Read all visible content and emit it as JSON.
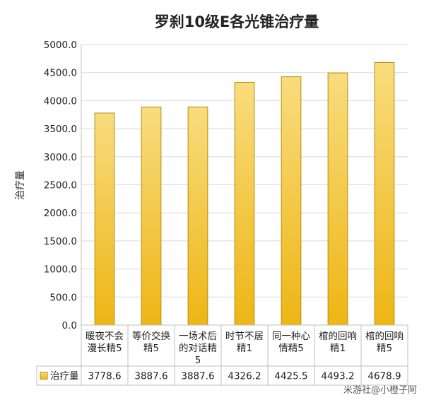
{
  "chart_data": {
    "type": "bar",
    "title": "罗刹10级E各光锥治疗量",
    "xlabel": "",
    "ylabel": "治疗量",
    "ylim": [
      0,
      5000
    ],
    "yticks": [
      "0.0",
      "500.0",
      "1000.0",
      "1500.0",
      "2000.0",
      "2500.0",
      "3000.0",
      "3500.0",
      "4000.0",
      "4500.0",
      "5000.0"
    ],
    "grid": true,
    "categories": [
      [
        "暖夜不会",
        "漫长精5"
      ],
      [
        "等价交换",
        "精5"
      ],
      [
        "一场术后",
        "的对话精",
        "5"
      ],
      [
        "时节不居",
        "精1"
      ],
      [
        "同一种心",
        "情精5"
      ],
      [
        "棺的回响",
        "精1"
      ],
      [
        "棺的回响",
        "精5"
      ]
    ],
    "series": [
      {
        "name": "治疗量",
        "values": [
          3778.6,
          3887.6,
          3887.6,
          4326.2,
          4425.5,
          4493.2,
          4678.9
        ],
        "labels": [
          "3778.6",
          "3887.6",
          "3887.6",
          "4326.2",
          "4425.5",
          "4493.2",
          "4678.9"
        ]
      }
    ],
    "legend": "data-table-left",
    "colors": {
      "bar_top": "#f8dc7e",
      "bar_bottom": "#eeb615",
      "bar_stroke": "#b88e0a",
      "grid": "#d9d9d9",
      "axis": "#bfbfbf",
      "title": "#222222",
      "text": "#222222"
    }
  },
  "watermark": "米游社@小橙子阿"
}
